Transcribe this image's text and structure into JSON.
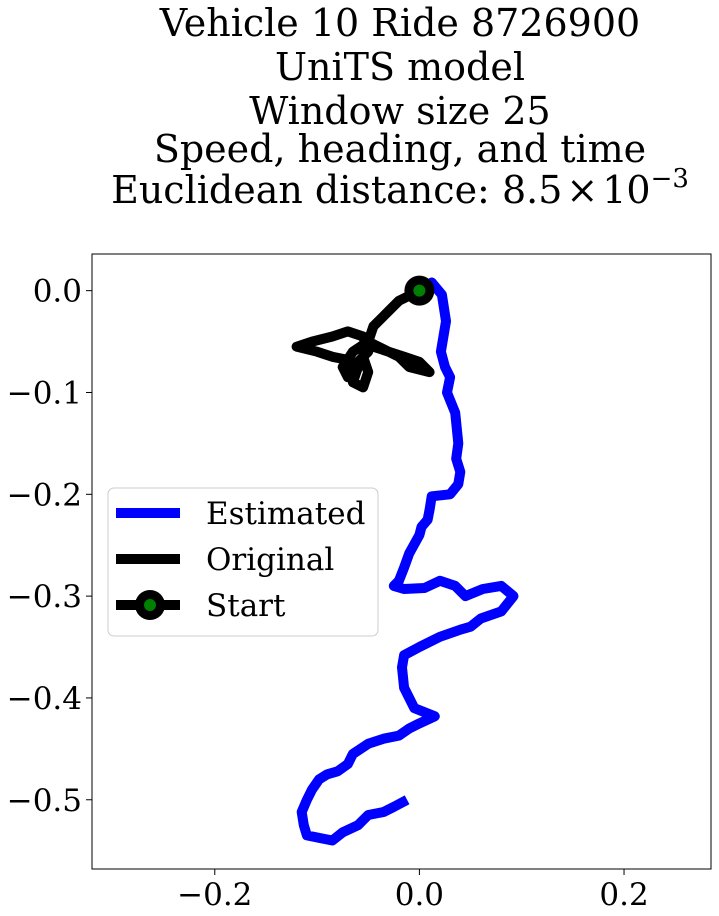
{
  "chart_data": {
    "type": "line",
    "title_lines": [
      "Vehicle 10 Ride 8726900",
      "UniTS model",
      "Window size 25",
      "Speed, heading, and time"
    ],
    "title_distance_prefix": "Euclidean distance: ",
    "title_distance_mantissa": "8.5",
    "title_distance_times": "×",
    "title_distance_base": "10",
    "title_distance_exponent": "−3",
    "xlim": [
      -0.32,
      0.285
    ],
    "ylim": [
      -0.568,
      0.036
    ],
    "xticks": [
      {
        "value": -0.2,
        "label": "−0.2"
      },
      {
        "value": 0.0,
        "label": "0.0"
      },
      {
        "value": 0.2,
        "label": "0.2"
      }
    ],
    "yticks": [
      {
        "value": 0.0,
        "label": "0.0"
      },
      {
        "value": -0.1,
        "label": "−0.1"
      },
      {
        "value": -0.2,
        "label": "−0.2"
      },
      {
        "value": -0.3,
        "label": "−0.3"
      },
      {
        "value": -0.4,
        "label": "−0.4"
      },
      {
        "value": -0.5,
        "label": "−0.5"
      }
    ],
    "grid": false,
    "legend_position": "center-left",
    "series": [
      {
        "name": "Estimated",
        "color": "#0000ff",
        "points": [
          [
            0.0,
            0.0
          ],
          [
            0.012,
            0.008
          ],
          [
            0.022,
            -0.004
          ],
          [
            0.026,
            -0.03
          ],
          [
            0.021,
            -0.06
          ],
          [
            0.025,
            -0.075
          ],
          [
            0.03,
            -0.085
          ],
          [
            0.027,
            -0.1
          ],
          [
            0.035,
            -0.12
          ],
          [
            0.038,
            -0.15
          ],
          [
            0.036,
            -0.165
          ],
          [
            0.04,
            -0.178
          ],
          [
            0.038,
            -0.19
          ],
          [
            0.03,
            -0.2
          ],
          [
            0.012,
            -0.202
          ],
          [
            0.01,
            -0.215
          ],
          [
            0.008,
            -0.225
          ],
          [
            0.002,
            -0.232
          ],
          [
            0.0,
            -0.24
          ],
          [
            -0.01,
            -0.258
          ],
          [
            -0.015,
            -0.272
          ],
          [
            -0.02,
            -0.285
          ],
          [
            -0.025,
            -0.29
          ],
          [
            -0.015,
            -0.293
          ],
          [
            0.005,
            -0.292
          ],
          [
            0.02,
            -0.285
          ],
          [
            0.035,
            -0.29
          ],
          [
            0.045,
            -0.3
          ],
          [
            0.062,
            -0.293
          ],
          [
            0.08,
            -0.29
          ],
          [
            0.092,
            -0.3
          ],
          [
            0.08,
            -0.315
          ],
          [
            0.06,
            -0.322
          ],
          [
            0.05,
            -0.33
          ],
          [
            0.04,
            -0.333
          ],
          [
            0.02,
            -0.34
          ],
          [
            0.0,
            -0.35
          ],
          [
            -0.015,
            -0.358
          ],
          [
            -0.017,
            -0.37
          ],
          [
            -0.015,
            -0.39
          ],
          [
            -0.005,
            -0.41
          ],
          [
            0.015,
            -0.418
          ],
          [
            0.0,
            -0.425
          ],
          [
            -0.01,
            -0.43
          ],
          [
            -0.02,
            -0.437
          ],
          [
            -0.035,
            -0.44
          ],
          [
            -0.05,
            -0.445
          ],
          [
            -0.065,
            -0.455
          ],
          [
            -0.07,
            -0.465
          ],
          [
            -0.08,
            -0.472
          ],
          [
            -0.09,
            -0.475
          ],
          [
            -0.098,
            -0.48
          ],
          [
            -0.105,
            -0.49
          ],
          [
            -0.11,
            -0.5
          ],
          [
            -0.115,
            -0.512
          ],
          [
            -0.113,
            -0.525
          ],
          [
            -0.11,
            -0.535
          ],
          [
            -0.095,
            -0.538
          ],
          [
            -0.085,
            -0.54
          ],
          [
            -0.075,
            -0.532
          ],
          [
            -0.06,
            -0.525
          ],
          [
            -0.05,
            -0.515
          ],
          [
            -0.035,
            -0.512
          ],
          [
            -0.025,
            -0.507
          ],
          [
            -0.012,
            -0.5
          ]
        ]
      },
      {
        "name": "Original",
        "color": "#000000",
        "points": [
          [
            0.0,
            0.0
          ],
          [
            -0.02,
            -0.01
          ],
          [
            -0.035,
            -0.025
          ],
          [
            -0.045,
            -0.035
          ],
          [
            -0.05,
            -0.05
          ],
          [
            -0.055,
            -0.065
          ],
          [
            -0.05,
            -0.08
          ],
          [
            -0.055,
            -0.095
          ],
          [
            -0.065,
            -0.09
          ],
          [
            -0.06,
            -0.075
          ],
          [
            -0.07,
            -0.068
          ],
          [
            -0.085,
            -0.065
          ],
          [
            -0.1,
            -0.06
          ],
          [
            -0.12,
            -0.055
          ],
          [
            -0.105,
            -0.05
          ],
          [
            -0.085,
            -0.045
          ],
          [
            -0.07,
            -0.04
          ],
          [
            -0.055,
            -0.045
          ],
          [
            -0.05,
            -0.06
          ],
          [
            -0.06,
            -0.07
          ],
          [
            -0.07,
            -0.085
          ],
          [
            -0.075,
            -0.075
          ],
          [
            -0.065,
            -0.06
          ],
          [
            -0.05,
            -0.05
          ],
          [
            -0.04,
            -0.055
          ],
          [
            -0.03,
            -0.06
          ],
          [
            -0.02,
            -0.065
          ],
          [
            -0.01,
            -0.075
          ],
          [
            0.01,
            -0.08
          ],
          [
            0.0,
            -0.07
          ],
          [
            -0.015,
            -0.065
          ],
          [
            -0.03,
            -0.06
          ],
          [
            -0.045,
            -0.055
          ]
        ]
      },
      {
        "name": "Start",
        "marker": true,
        "color": "#000000",
        "fill": "#008000",
        "points": [
          [
            0.0,
            0.0
          ]
        ]
      }
    ]
  }
}
